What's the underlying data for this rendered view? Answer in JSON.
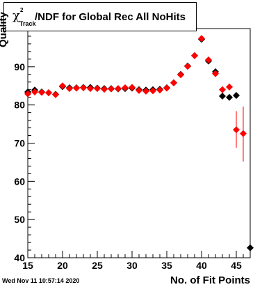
{
  "title": {
    "chi": "χ",
    "sup": "2",
    "sub": "Track",
    "rest": "/NDF for Global Rec All NoHits"
  },
  "footer": {
    "date": "Wed Nov 11 10:57:14 2020"
  },
  "chart_data": {
    "type": "scatter",
    "title": "χ2Track/NDF for Global Rec All NoHits",
    "xlabel": "No. of Fit Points",
    "ylabel": "Quality",
    "xlim": [
      15,
      47
    ],
    "ylim": [
      40,
      100
    ],
    "xticks": [
      15,
      20,
      25,
      30,
      35,
      40,
      45
    ],
    "yticks": [
      40,
      50,
      60,
      70,
      80,
      90
    ],
    "grid": false,
    "colors": {
      "black_series": "#000000",
      "red_series": "#ff0000"
    },
    "series": [
      {
        "marker": "diamond",
        "color": "#000000",
        "points": [
          {
            "x": 15,
            "y": 83.4
          },
          {
            "x": 16,
            "y": 83.9
          },
          {
            "x": 17,
            "y": 83.4
          },
          {
            "x": 18,
            "y": 83.2
          },
          {
            "x": 19,
            "y": 82.8
          },
          {
            "x": 20,
            "y": 84.8
          },
          {
            "x": 21,
            "y": 84.5
          },
          {
            "x": 22,
            "y": 84.5
          },
          {
            "x": 23,
            "y": 84.6
          },
          {
            "x": 24,
            "y": 84.6
          },
          {
            "x": 25,
            "y": 84.4
          },
          {
            "x": 26,
            "y": 84.3
          },
          {
            "x": 27,
            "y": 84.3
          },
          {
            "x": 28,
            "y": 84.2
          },
          {
            "x": 29,
            "y": 84.3
          },
          {
            "x": 30,
            "y": 84.4
          },
          {
            "x": 31,
            "y": 84.0
          },
          {
            "x": 32,
            "y": 83.9
          },
          {
            "x": 33,
            "y": 84.0
          },
          {
            "x": 34,
            "y": 84.1
          },
          {
            "x": 35,
            "y": 84.5
          },
          {
            "x": 36,
            "y": 85.8
          },
          {
            "x": 37,
            "y": 88.0
          },
          {
            "x": 38,
            "y": 90.2
          },
          {
            "x": 39,
            "y": 92.9
          },
          {
            "x": 40,
            "y": 97.2
          },
          {
            "x": 41,
            "y": 91.5
          },
          {
            "x": 42,
            "y": 88.7
          },
          {
            "x": 43,
            "y": 82.3
          },
          {
            "x": 44,
            "y": 82.0
          },
          {
            "x": 45,
            "y": 82.5
          },
          {
            "x": 47,
            "y": 42.6
          }
        ]
      },
      {
        "marker": "diamond",
        "color": "#ff0000",
        "points": [
          {
            "x": 15,
            "y": 82.9
          },
          {
            "x": 16,
            "y": 83.4
          },
          {
            "x": 17,
            "y": 83.3
          },
          {
            "x": 18,
            "y": 83.2
          },
          {
            "x": 19,
            "y": 82.7
          },
          {
            "x": 20,
            "y": 85.0
          },
          {
            "x": 21,
            "y": 84.3
          },
          {
            "x": 22,
            "y": 84.4
          },
          {
            "x": 23,
            "y": 84.5
          },
          {
            "x": 24,
            "y": 84.3
          },
          {
            "x": 25,
            "y": 84.3
          },
          {
            "x": 26,
            "y": 84.1
          },
          {
            "x": 27,
            "y": 84.2
          },
          {
            "x": 28,
            "y": 84.3
          },
          {
            "x": 29,
            "y": 84.5
          },
          {
            "x": 30,
            "y": 84.6
          },
          {
            "x": 31,
            "y": 83.8
          },
          {
            "x": 32,
            "y": 83.6
          },
          {
            "x": 33,
            "y": 83.7
          },
          {
            "x": 34,
            "y": 83.9
          },
          {
            "x": 35,
            "y": 84.4
          },
          {
            "x": 36,
            "y": 85.8
          },
          {
            "x": 37,
            "y": 87.9
          },
          {
            "x": 38,
            "y": 90.1
          },
          {
            "x": 39,
            "y": 92.9
          },
          {
            "x": 40,
            "y": 97.4
          },
          {
            "x": 41,
            "y": 91.8
          },
          {
            "x": 42,
            "y": 88.2
          },
          {
            "x": 43,
            "y": 84.0
          },
          {
            "x": 44,
            "y": 84.7
          },
          {
            "x": 45,
            "y": 73.5,
            "err": [
              68.8,
              78.4
            ]
          },
          {
            "x": 46,
            "y": 72.5,
            "err": [
              65.2,
              79.6
            ]
          }
        ]
      }
    ]
  }
}
